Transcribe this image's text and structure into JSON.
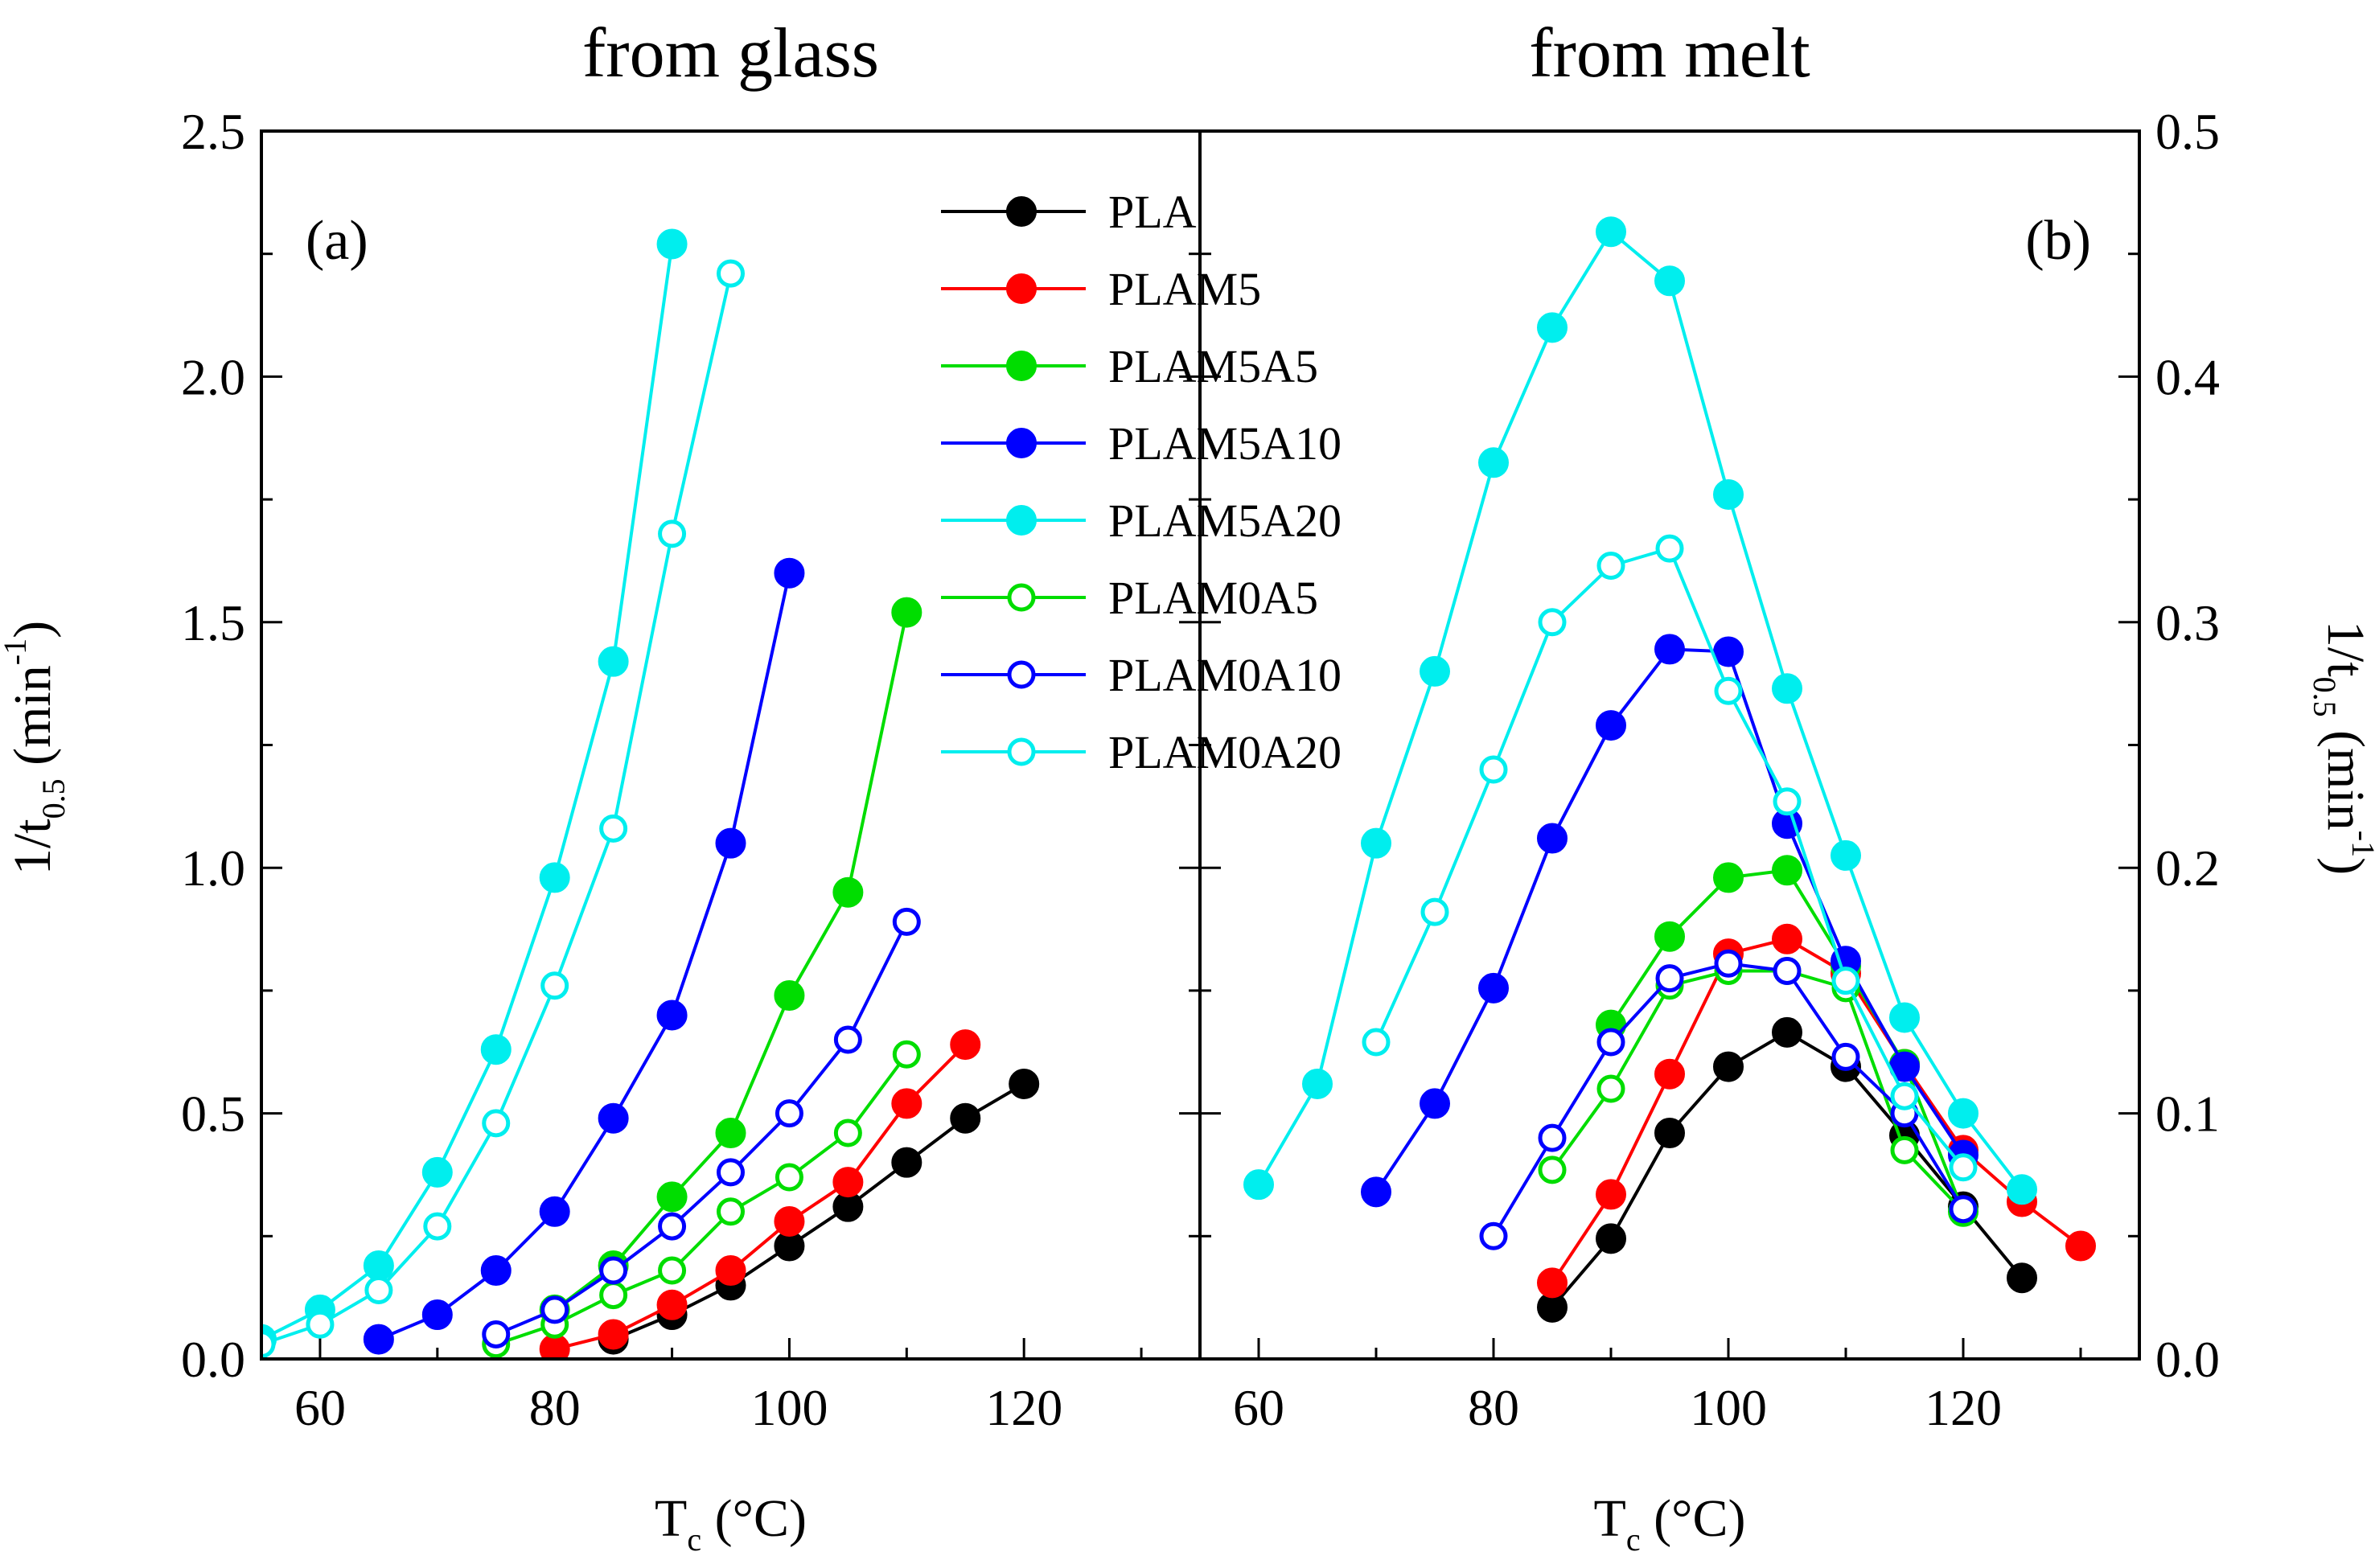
{
  "chart_data": [
    {
      "type": "line",
      "panel_label": "(a)",
      "title": "from glass",
      "xlabel": "T",
      "xlabel_sub": "c",
      "xlabel_unit": " (°C)",
      "ylabel": "1/t",
      "ylabel_sub": "0.5",
      "ylabel_unit_pre": " (min",
      "ylabel_sup": "-1",
      "ylabel_unit_post": ")",
      "xlim": [
        55,
        135
      ],
      "ylim": [
        0,
        2.5
      ],
      "xticks": [
        "60",
        "80",
        "100",
        "120"
      ],
      "yticks": [
        "0.0",
        "0.5",
        "1.0",
        "1.5",
        "2.0",
        "2.5"
      ],
      "series": [
        {
          "name": "PLA",
          "color": "#000000",
          "filled": true,
          "x": [
            85,
            90,
            95,
            100,
            105,
            110,
            115,
            120
          ],
          "y": [
            0.04,
            0.09,
            0.15,
            0.23,
            0.31,
            0.4,
            0.49,
            0.56
          ]
        },
        {
          "name": "PLAM5",
          "color": "#ff0000",
          "filled": true,
          "x": [
            80,
            85,
            90,
            95,
            100,
            105,
            110,
            115
          ],
          "y": [
            0.02,
            0.05,
            0.11,
            0.18,
            0.28,
            0.36,
            0.52,
            0.64
          ]
        },
        {
          "name": "PLAM5A5",
          "color": "#00dd00",
          "filled": true,
          "x": [
            80,
            85,
            90,
            95,
            100,
            105,
            110
          ],
          "y": [
            0.1,
            0.19,
            0.33,
            0.46,
            0.74,
            0.95,
            1.52
          ]
        },
        {
          "name": "PLAM5A10",
          "color": "#0000ff",
          "filled": true,
          "x": [
            65,
            70,
            75,
            80,
            85,
            90,
            95,
            100
          ],
          "y": [
            0.04,
            0.09,
            0.18,
            0.3,
            0.49,
            0.7,
            1.05,
            1.6
          ]
        },
        {
          "name": "PLAM5A20",
          "color": "#00eeee",
          "filled": true,
          "x": [
            55,
            60,
            65,
            70,
            75,
            80,
            85,
            90
          ],
          "y": [
            0.04,
            0.1,
            0.19,
            0.38,
            0.63,
            0.98,
            1.42,
            2.27
          ]
        },
        {
          "name": "PLAM0A5",
          "color": "#00dd00",
          "filled": false,
          "x": [
            75,
            80,
            85,
            90,
            95,
            100,
            105,
            110
          ],
          "y": [
            0.03,
            0.07,
            0.13,
            0.18,
            0.3,
            0.37,
            0.46,
            0.62
          ]
        },
        {
          "name": "PLAM0A10",
          "color": "#0000ff",
          "filled": false,
          "x": [
            75,
            80,
            85,
            90,
            95,
            100,
            105,
            110
          ],
          "y": [
            0.05,
            0.1,
            0.18,
            0.27,
            0.38,
            0.5,
            0.65,
            0.89
          ]
        },
        {
          "name": "PLAM0A20",
          "color": "#00eeee",
          "filled": false,
          "x": [
            55,
            60,
            65,
            70,
            75,
            80,
            85,
            90,
            95
          ],
          "y": [
            0.03,
            0.07,
            0.14,
            0.27,
            0.48,
            0.76,
            1.08,
            1.68,
            2.21
          ]
        }
      ]
    },
    {
      "type": "line",
      "panel_label": "(b)",
      "title": "from melt",
      "xlabel": "T",
      "xlabel_sub": "c",
      "xlabel_unit": " (°C)",
      "ylabel": "1/t",
      "ylabel_sub": "0.5",
      "ylabel_unit_pre": " (min",
      "ylabel_sup": "-1",
      "ylabel_unit_post": ")",
      "xlim": [
        55,
        135
      ],
      "ylim": [
        0,
        0.5
      ],
      "xticks": [
        "60",
        "80",
        "100",
        "120"
      ],
      "yticks": [
        "0.0",
        "0.1",
        "0.2",
        "0.3",
        "0.4",
        "0.5"
      ],
      "series": [
        {
          "name": "PLA",
          "color": "#000000",
          "filled": true,
          "x": [
            85,
            90,
            95,
            100,
            105,
            110,
            115,
            120,
            125
          ],
          "y": [
            0.021,
            0.049,
            0.092,
            0.119,
            0.133,
            0.119,
            0.091,
            0.062,
            0.033
          ]
        },
        {
          "name": "PLAM5",
          "color": "#ff0000",
          "filled": true,
          "x": [
            85,
            90,
            95,
            100,
            105,
            110,
            115,
            120,
            125,
            130
          ],
          "y": [
            0.031,
            0.067,
            0.116,
            0.165,
            0.171,
            0.157,
            0.12,
            0.085,
            0.064,
            0.046
          ]
        },
        {
          "name": "PLAM5A5",
          "color": "#00dd00",
          "filled": true,
          "x": [
            90,
            95,
            100,
            105,
            110,
            115,
            120
          ],
          "y": [
            0.136,
            0.172,
            0.196,
            0.199,
            0.16,
            0.12,
            0.06
          ]
        },
        {
          "name": "PLAM5A10",
          "color": "#0000ff",
          "filled": true,
          "x": [
            70,
            75,
            80,
            85,
            90,
            95,
            100,
            105,
            110,
            115,
            120
          ],
          "y": [
            0.068,
            0.104,
            0.151,
            0.212,
            0.258,
            0.289,
            0.288,
            0.218,
            0.162,
            0.119,
            0.083
          ]
        },
        {
          "name": "PLAM5A20",
          "color": "#00eeee",
          "filled": true,
          "x": [
            60,
            65,
            70,
            75,
            80,
            85,
            90,
            95,
            100,
            105,
            110,
            115,
            120,
            125
          ],
          "y": [
            0.071,
            0.112,
            0.21,
            0.28,
            0.365,
            0.42,
            0.459,
            0.439,
            0.352,
            0.273,
            0.205,
            0.139,
            0.1,
            0.069
          ]
        },
        {
          "name": "PLAM0A5",
          "color": "#00dd00",
          "filled": false,
          "x": [
            85,
            90,
            95,
            100,
            105,
            110,
            115,
            120
          ],
          "y": [
            0.077,
            0.11,
            0.152,
            0.158,
            0.158,
            0.151,
            0.085,
            0.06
          ]
        },
        {
          "name": "PLAM0A10",
          "color": "#0000ff",
          "filled": false,
          "x": [
            80,
            85,
            90,
            95,
            100,
            105,
            110,
            115,
            120
          ],
          "y": [
            0.05,
            0.09,
            0.129,
            0.155,
            0.161,
            0.158,
            0.123,
            0.1,
            0.061
          ]
        },
        {
          "name": "PLAM0A20",
          "color": "#00eeee",
          "filled": false,
          "x": [
            70,
            75,
            80,
            85,
            90,
            95,
            100,
            105,
            110,
            115,
            120
          ],
          "y": [
            0.129,
            0.182,
            0.24,
            0.3,
            0.323,
            0.33,
            0.272,
            0.227,
            0.154,
            0.107,
            0.078
          ]
        }
      ]
    }
  ],
  "legend": {
    "placement": "top-center",
    "entries": [
      {
        "name": "PLA",
        "color": "#000000",
        "filled": true
      },
      {
        "name": "PLAM5",
        "color": "#ff0000",
        "filled": true
      },
      {
        "name": "PLAM5A5",
        "color": "#00dd00",
        "filled": true
      },
      {
        "name": "PLAM5A10",
        "color": "#0000ff",
        "filled": true
      },
      {
        "name": "PLAM5A20",
        "color": "#00eeee",
        "filled": true
      },
      {
        "name": "PLAM0A5",
        "color": "#00dd00",
        "filled": false
      },
      {
        "name": "PLAM0A10",
        "color": "#0000ff",
        "filled": false
      },
      {
        "name": "PLAM0A20",
        "color": "#00eeee",
        "filled": false
      }
    ]
  }
}
